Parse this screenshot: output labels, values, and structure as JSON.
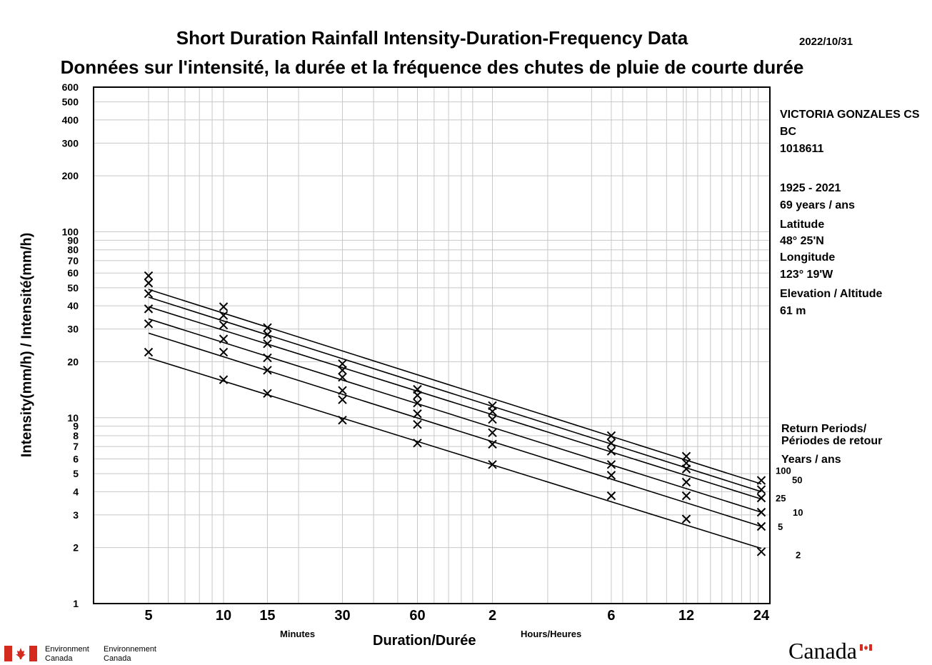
{
  "title": "Short Duration Rainfall Intensity-Duration-Frequency Data",
  "subtitle": "Données sur l'intensité, la durée et la fréquence des chutes de pluie de courte durée",
  "date": "2022/10/31",
  "station": {
    "name": "VICTORIA GONZALES CS",
    "province": "BC",
    "id": "1018611",
    "period": "1925 - 2021",
    "years": "69 years / ans",
    "latitude_label": "Latitude",
    "latitude_value": "48° 25'N",
    "longitude_label": "Longitude",
    "longitude_value": "123° 19'W",
    "elevation_label": "Elevation / Altitude",
    "elevation_value": "61 m"
  },
  "return_periods": {
    "title_line1": "Return Periods/",
    "title_line2": "Périodes de retour",
    "units": "Years / ans"
  },
  "footer": {
    "org_en_1": "Environment",
    "org_en_2": "Canada",
    "org_fr_1": "Environnement",
    "org_fr_2": "Canada",
    "wordmark": "Canada"
  },
  "chart_data": {
    "type": "line",
    "title": "Short Duration Rainfall Intensity-Duration-Frequency Data",
    "ylabel": "Intensity(mm/h) / Intensité(mm/h)",
    "xlabel": "Duration/Durée",
    "x_unit_minutes": "Minutes",
    "x_unit_hours": "Hours/Heures",
    "x_scale": "log",
    "y_scale": "log",
    "ylim": [
      1,
      600
    ],
    "grid": true,
    "legend": "right",
    "x_ticks_minutes": [
      5,
      10,
      15,
      30,
      60,
      120,
      360,
      720,
      1440
    ],
    "x_tick_labels": [
      "5",
      "10",
      "15",
      "30",
      "60",
      "2",
      "6",
      "12",
      "24"
    ],
    "y_tick_values": [
      1,
      2,
      3,
      4,
      5,
      6,
      7,
      8,
      9,
      10,
      20,
      30,
      40,
      50,
      60,
      70,
      80,
      90,
      100,
      200,
      300,
      400,
      500,
      600
    ],
    "y_tick_labels": [
      "1",
      "2",
      "3",
      "4",
      "5",
      "6",
      "7",
      "8",
      "9",
      "10",
      "20",
      "30",
      "40",
      "50",
      "60",
      "70",
      "80",
      "90",
      "100",
      "200",
      "300",
      "400",
      "500",
      "600"
    ],
    "durations_minutes": [
      5,
      10,
      15,
      30,
      60,
      120,
      360,
      720,
      1440
    ],
    "series": [
      {
        "name": "2",
        "points": [
          22.5,
          16.0,
          13.5,
          9.7,
          7.3,
          5.6,
          3.8,
          2.85,
          1.9
        ],
        "fit": [
          21.0,
          1.98
        ]
      },
      {
        "name": "5",
        "points": [
          32.0,
          22.5,
          18.0,
          12.5,
          9.2,
          7.2,
          4.9,
          3.8,
          2.6
        ],
        "fit": [
          28.5,
          2.6
        ]
      },
      {
        "name": "10",
        "points": [
          38.5,
          26.5,
          21.0,
          14.0,
          10.5,
          8.3,
          5.6,
          4.5,
          3.1
        ],
        "fit": [
          34.0,
          3.1
        ]
      },
      {
        "name": "25",
        "points": [
          46.5,
          31.5,
          25.0,
          16.5,
          12.0,
          9.8,
          6.6,
          5.3,
          3.7
        ],
        "fit": [
          39.5,
          3.65
        ]
      },
      {
        "name": "50",
        "points": [
          53.0,
          35.5,
          28.0,
          18.0,
          13.2,
          10.8,
          7.3,
          5.7,
          4.1
        ],
        "fit": [
          44.5,
          4.0
        ]
      },
      {
        "name": "100",
        "points": [
          58.0,
          39.5,
          30.5,
          19.5,
          14.2,
          11.6,
          8.0,
          6.2,
          4.6
        ],
        "fit": [
          49.0,
          4.4
        ]
      }
    ]
  }
}
